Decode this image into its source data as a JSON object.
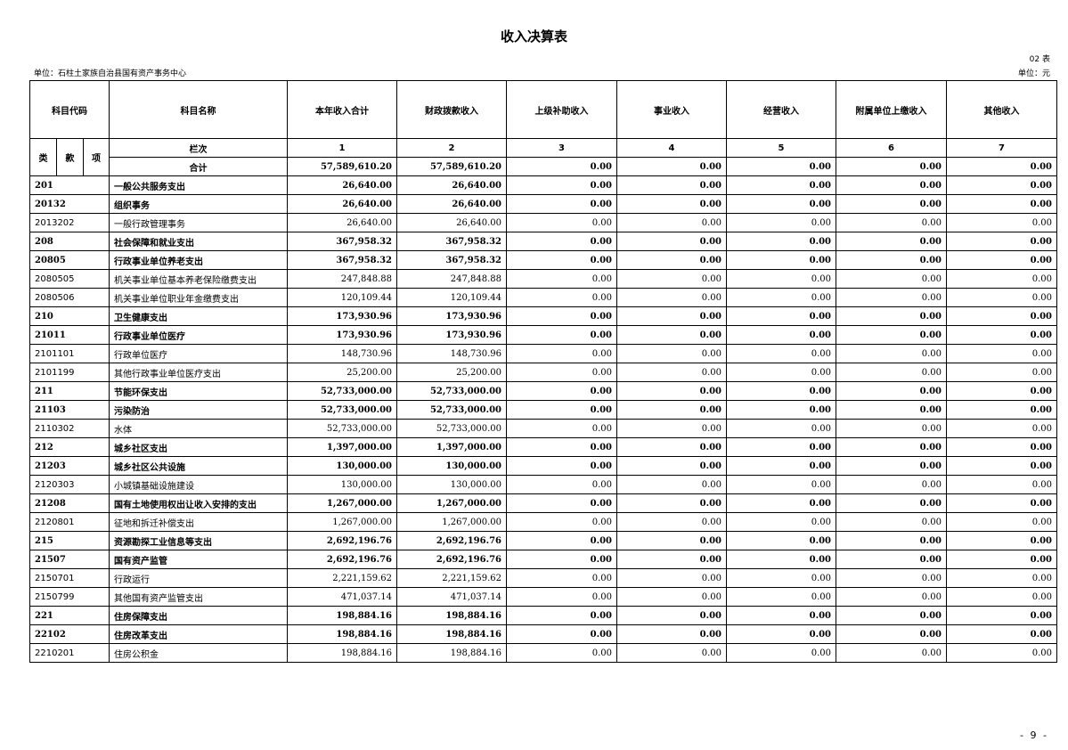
{
  "title": "收入决算表",
  "table_no": "02 表",
  "unit": "单位：石柱土家族自治县国有资产事务中心",
  "currency": "单位：元",
  "headers": {
    "code": "科目代码",
    "name": "科目名称",
    "cols": [
      "本年收入合计",
      "财政拨款收入",
      "上级补助收入",
      "事业收入",
      "经营收入",
      "附属单位上缴收入",
      "其他收入"
    ]
  },
  "sub": {
    "lei": "类",
    "kuan": "款",
    "xiang": "项",
    "lanci": "栏次",
    "nums": [
      "1",
      "2",
      "3",
      "4",
      "5",
      "6",
      "7"
    ],
    "total_label": "合计",
    "total_values": [
      "57,589,610.20",
      "57,589,610.20",
      "0.00",
      "0.00",
      "0.00",
      "0.00",
      "0.00"
    ]
  },
  "rows": [
    {
      "code": "201",
      "name": "一般公共服务支出",
      "v": [
        "26,640.00",
        "26,640.00",
        "0.00",
        "0.00",
        "0.00",
        "0.00",
        "0.00"
      ],
      "bold": true
    },
    {
      "code": "20132",
      "name": "组织事务",
      "v": [
        "26,640.00",
        "26,640.00",
        "0.00",
        "0.00",
        "0.00",
        "0.00",
        "0.00"
      ],
      "bold": true
    },
    {
      "code": "2013202",
      "name": "一般行政管理事务",
      "v": [
        "26,640.00",
        "26,640.00",
        "0.00",
        "0.00",
        "0.00",
        "0.00",
        "0.00"
      ],
      "bold": false
    },
    {
      "code": "208",
      "name": "社会保障和就业支出",
      "v": [
        "367,958.32",
        "367,958.32",
        "0.00",
        "0.00",
        "0.00",
        "0.00",
        "0.00"
      ],
      "bold": true
    },
    {
      "code": "20805",
      "name": "行政事业单位养老支出",
      "v": [
        "367,958.32",
        "367,958.32",
        "0.00",
        "0.00",
        "0.00",
        "0.00",
        "0.00"
      ],
      "bold": true
    },
    {
      "code": "2080505",
      "name": "机关事业单位基本养老保险缴费支出",
      "v": [
        "247,848.88",
        "247,848.88",
        "0.00",
        "0.00",
        "0.00",
        "0.00",
        "0.00"
      ],
      "bold": false
    },
    {
      "code": "2080506",
      "name": "机关事业单位职业年金缴费支出",
      "v": [
        "120,109.44",
        "120,109.44",
        "0.00",
        "0.00",
        "0.00",
        "0.00",
        "0.00"
      ],
      "bold": false
    },
    {
      "code": "210",
      "name": "卫生健康支出",
      "v": [
        "173,930.96",
        "173,930.96",
        "0.00",
        "0.00",
        "0.00",
        "0.00",
        "0.00"
      ],
      "bold": true
    },
    {
      "code": "21011",
      "name": "行政事业单位医疗",
      "v": [
        "173,930.96",
        "173,930.96",
        "0.00",
        "0.00",
        "0.00",
        "0.00",
        "0.00"
      ],
      "bold": true
    },
    {
      "code": "2101101",
      "name": "行政单位医疗",
      "v": [
        "148,730.96",
        "148,730.96",
        "0.00",
        "0.00",
        "0.00",
        "0.00",
        "0.00"
      ],
      "bold": false
    },
    {
      "code": "2101199",
      "name": "其他行政事业单位医疗支出",
      "v": [
        "25,200.00",
        "25,200.00",
        "0.00",
        "0.00",
        "0.00",
        "0.00",
        "0.00"
      ],
      "bold": false
    },
    {
      "code": "211",
      "name": "节能环保支出",
      "v": [
        "52,733,000.00",
        "52,733,000.00",
        "0.00",
        "0.00",
        "0.00",
        "0.00",
        "0.00"
      ],
      "bold": true
    },
    {
      "code": "21103",
      "name": "污染防治",
      "v": [
        "52,733,000.00",
        "52,733,000.00",
        "0.00",
        "0.00",
        "0.00",
        "0.00",
        "0.00"
      ],
      "bold": true
    },
    {
      "code": "2110302",
      "name": "水体",
      "v": [
        "52,733,000.00",
        "52,733,000.00",
        "0.00",
        "0.00",
        "0.00",
        "0.00",
        "0.00"
      ],
      "bold": false
    },
    {
      "code": "212",
      "name": "城乡社区支出",
      "v": [
        "1,397,000.00",
        "1,397,000.00",
        "0.00",
        "0.00",
        "0.00",
        "0.00",
        "0.00"
      ],
      "bold": true
    },
    {
      "code": "21203",
      "name": "城乡社区公共设施",
      "v": [
        "130,000.00",
        "130,000.00",
        "0.00",
        "0.00",
        "0.00",
        "0.00",
        "0.00"
      ],
      "bold": true
    },
    {
      "code": "2120303",
      "name": "小城镇基础设施建设",
      "v": [
        "130,000.00",
        "130,000.00",
        "0.00",
        "0.00",
        "0.00",
        "0.00",
        "0.00"
      ],
      "bold": false
    },
    {
      "code": "21208",
      "name": "国有土地使用权出让收入安排的支出",
      "v": [
        "1,267,000.00",
        "1,267,000.00",
        "0.00",
        "0.00",
        "0.00",
        "0.00",
        "0.00"
      ],
      "bold": true
    },
    {
      "code": "2120801",
      "name": "征地和拆迁补偿支出",
      "v": [
        "1,267,000.00",
        "1,267,000.00",
        "0.00",
        "0.00",
        "0.00",
        "0.00",
        "0.00"
      ],
      "bold": false
    },
    {
      "code": "215",
      "name": "资源勘探工业信息等支出",
      "v": [
        "2,692,196.76",
        "2,692,196.76",
        "0.00",
        "0.00",
        "0.00",
        "0.00",
        "0.00"
      ],
      "bold": true
    },
    {
      "code": "21507",
      "name": "国有资产监管",
      "v": [
        "2,692,196.76",
        "2,692,196.76",
        "0.00",
        "0.00",
        "0.00",
        "0.00",
        "0.00"
      ],
      "bold": true
    },
    {
      "code": "2150701",
      "name": "行政运行",
      "v": [
        "2,221,159.62",
        "2,221,159.62",
        "0.00",
        "0.00",
        "0.00",
        "0.00",
        "0.00"
      ],
      "bold": false
    },
    {
      "code": "2150799",
      "name": "其他国有资产监管支出",
      "v": [
        "471,037.14",
        "471,037.14",
        "0.00",
        "0.00",
        "0.00",
        "0.00",
        "0.00"
      ],
      "bold": false
    },
    {
      "code": "221",
      "name": "住房保障支出",
      "v": [
        "198,884.16",
        "198,884.16",
        "0.00",
        "0.00",
        "0.00",
        "0.00",
        "0.00"
      ],
      "bold": true
    },
    {
      "code": "22102",
      "name": "住房改革支出",
      "v": [
        "198,884.16",
        "198,884.16",
        "0.00",
        "0.00",
        "0.00",
        "0.00",
        "0.00"
      ],
      "bold": true
    },
    {
      "code": "2210201",
      "name": "住房公积金",
      "v": [
        "198,884.16",
        "198,884.16",
        "0.00",
        "0.00",
        "0.00",
        "0.00",
        "0.00"
      ],
      "bold": false
    }
  ],
  "page_number": "- 9 -"
}
